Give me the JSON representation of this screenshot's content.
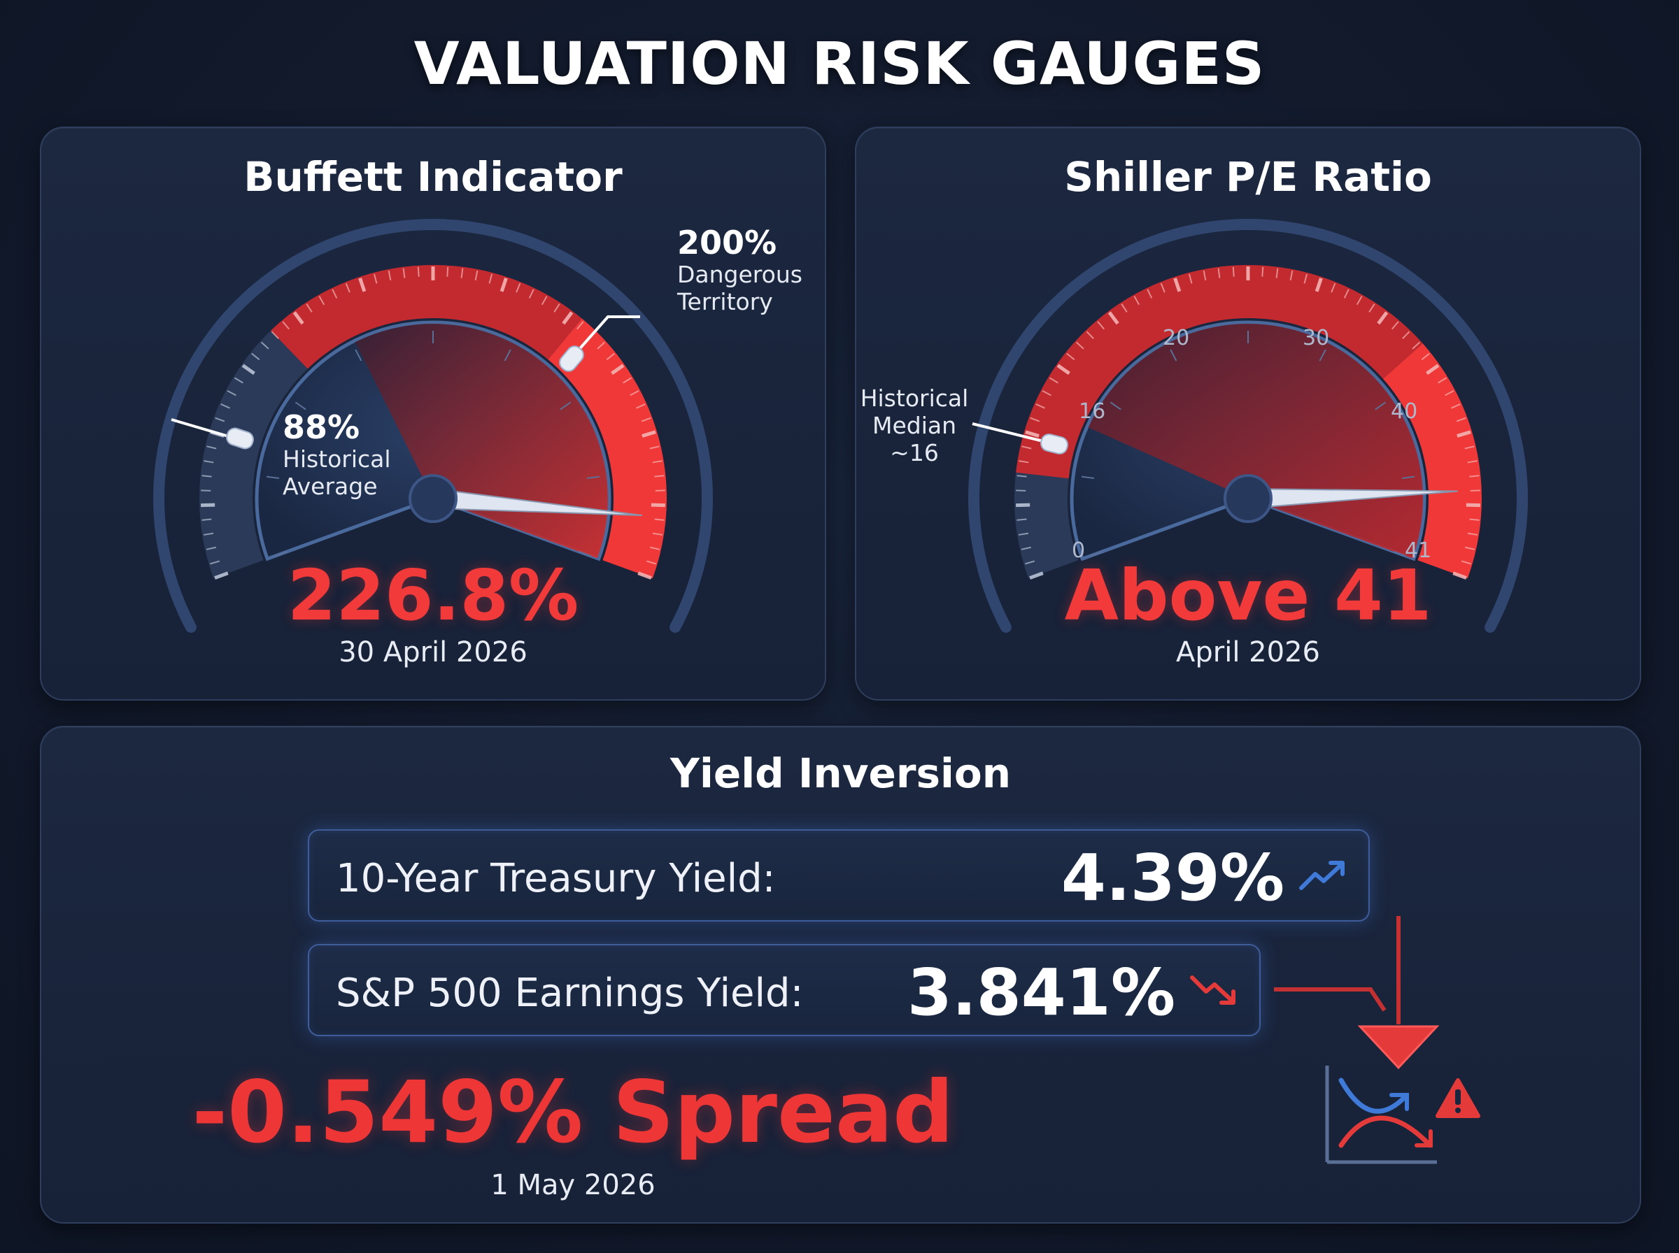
{
  "page": {
    "title": "VALUATION RISK GAUGES"
  },
  "buffett": {
    "title": "Buffett Indicator",
    "value": "226.8%",
    "date": "30 April 2026",
    "avg_marker": {
      "value": "88%",
      "label_line1": "Historical",
      "label_line2": "Average"
    },
    "danger_marker": {
      "value": "200%",
      "label_line1": "Dangerous",
      "label_line2": "Territory"
    },
    "needle_fraction": 0.93,
    "colors": {
      "danger": "#e53a3a",
      "dark": "#1c2c4a"
    }
  },
  "shiller": {
    "title": "Shiller P/E Ratio",
    "value": "Above 41",
    "date": "April 2026",
    "median_marker": {
      "line1": "Historical",
      "line2": "Median",
      "line3": "~16"
    },
    "scale_labels": [
      "0",
      "16",
      "20",
      "30",
      "40",
      "41"
    ],
    "needle_fraction": 0.9,
    "colors": {
      "danger": "#e53a3a",
      "dark": "#1c2c4a"
    }
  },
  "yield": {
    "title": "Yield Inversion",
    "treasury": {
      "label": "10-Year Treasury Yield:",
      "value": "4.39%",
      "trend": "trend-up-icon",
      "color": "#3f7ad8"
    },
    "earnings": {
      "label": "S&P 500 Earnings Yield:",
      "value": "3.841%",
      "trend": "trend-down-icon",
      "color": "#e53a3a"
    },
    "spread": "-0.549% Spread",
    "date": "1 May 2026",
    "icon": "inversion-warning-icon"
  }
}
